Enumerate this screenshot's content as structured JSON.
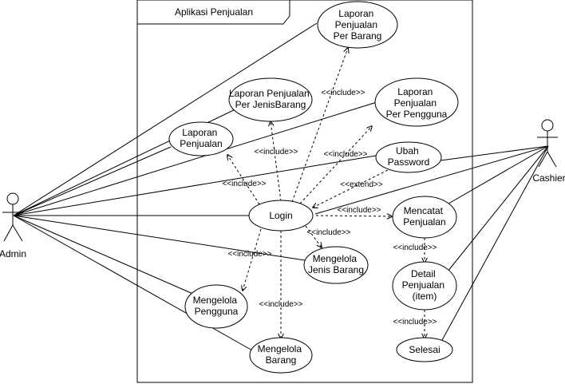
{
  "system": {
    "title": "Aplikasi Penjualan"
  },
  "actors": {
    "admin": "Admin",
    "cashier": "Cashier"
  },
  "usecases": {
    "lap_barang": [
      "Laporan",
      "Penjualan",
      "Per Barang"
    ],
    "lap_jenis": [
      "Laporan Penjualan",
      "Per JenisBarang"
    ],
    "lap_pengguna": [
      "Laporan",
      "Penjualan",
      "Per Pengguna"
    ],
    "lap": [
      "Laporan",
      "Penjualan"
    ],
    "ubah_pw": [
      "Ubah",
      "Password"
    ],
    "login": [
      "Login"
    ],
    "mencatat": [
      "Mencatat",
      "Penjualan"
    ],
    "jenis_barang": [
      "Mengelola",
      "Jenis Barang"
    ],
    "detail": [
      "Detail",
      "Penjualan",
      "(item)"
    ],
    "pengguna": [
      "Mengelola",
      "Pengguna"
    ],
    "barang": [
      "Mengelola",
      "Barang"
    ],
    "selesai": [
      "Selesai"
    ]
  },
  "stereotypes": {
    "include": "<<include>>",
    "extend": "<<extend>>"
  }
}
